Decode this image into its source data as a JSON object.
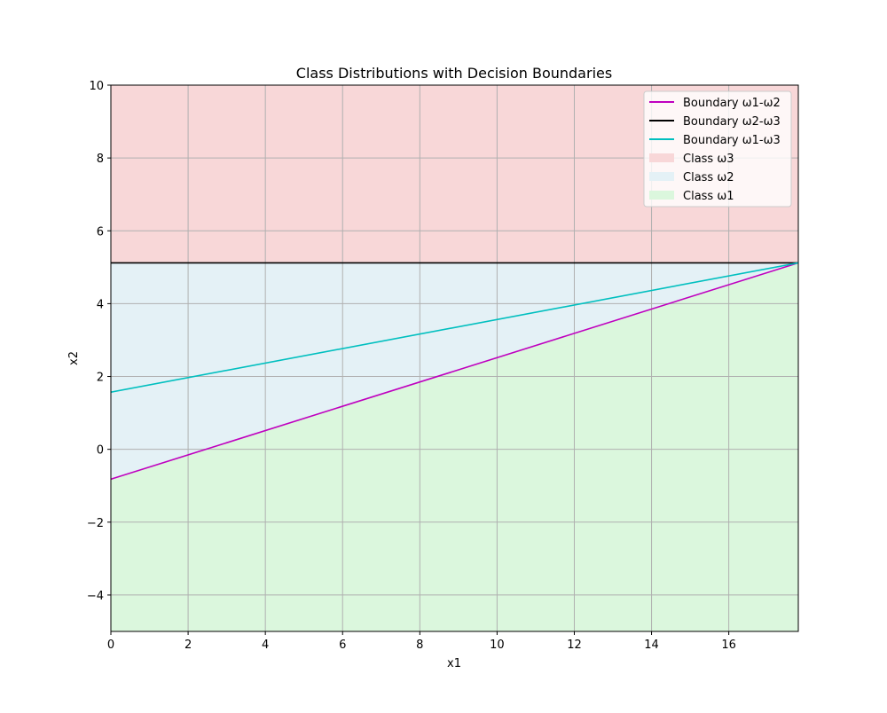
{
  "chart_data": {
    "type": "line",
    "title": "Class Distributions with Decision Boundaries",
    "xlabel": "x1",
    "ylabel": "x2",
    "xlim": [
      0,
      17.8
    ],
    "ylim": [
      -5,
      10
    ],
    "xticks": [
      0,
      2,
      4,
      6,
      8,
      10,
      12,
      14,
      16
    ],
    "yticks": [
      -4,
      -2,
      0,
      2,
      4,
      6,
      8,
      10
    ],
    "xtick_labels": [
      "0",
      "2",
      "4",
      "6",
      "8",
      "10",
      "12",
      "14",
      "16"
    ],
    "ytick_labels": [
      "−4",
      "−2",
      "0",
      "2",
      "4",
      "6",
      "8",
      "10"
    ],
    "grid": true,
    "legend_position": "upper right",
    "lines": [
      {
        "name": "Boundary ω1-ω2",
        "color": "#bf00bf",
        "x": [
          0,
          17.8
        ],
        "y": [
          -0.82,
          5.12
        ]
      },
      {
        "name": "Boundary ω2-ω3",
        "color": "#000000",
        "x": [
          0,
          17.8
        ],
        "y": [
          5.12,
          5.12
        ]
      },
      {
        "name": "Boundary ω1-ω3",
        "color": "#00bfbf",
        "x": [
          0,
          17.8
        ],
        "y": [
          1.57,
          5.12
        ]
      }
    ],
    "regions": [
      {
        "name": "Class ω3",
        "color": "#f8d7d8",
        "polygon": [
          [
            0,
            5.12
          ],
          [
            17.8,
            5.12
          ],
          [
            17.8,
            10
          ],
          [
            0,
            10
          ]
        ]
      },
      {
        "name": "Class ω2",
        "color": "#e4f1f6",
        "polygon": [
          [
            0,
            -0.82
          ],
          [
            17.8,
            5.12
          ],
          [
            0,
            5.12
          ]
        ]
      },
      {
        "name": "Class ω1",
        "color": "#dbf7dd",
        "polygon": [
          [
            0,
            -5
          ],
          [
            17.8,
            -5
          ],
          [
            17.8,
            5.12
          ],
          [
            0,
            -0.82
          ]
        ]
      }
    ]
  }
}
